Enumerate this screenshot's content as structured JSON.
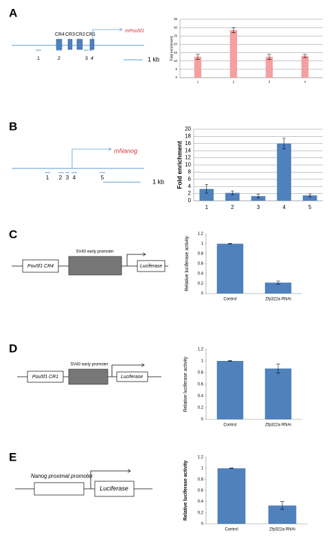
{
  "panels": [
    {
      "label": "A",
      "diagram": {
        "regions": [
          "CR4",
          "CR3",
          "CR2",
          "CR1"
        ],
        "gene": "mPou5f1",
        "primers": [
          "1",
          "2",
          "3",
          "4"
        ],
        "scale": "1 kb"
      }
    },
    {
      "label": "B",
      "diagram": {
        "gene": "mNanog",
        "primers": [
          "1",
          "2",
          "3",
          "4",
          "5"
        ],
        "scale": "1 kb"
      }
    },
    {
      "label": "C",
      "diagram": {
        "element": "Pou5f1 CR4",
        "promoter": "SV40 early promoter",
        "reporter": "Luciferase"
      }
    },
    {
      "label": "D",
      "diagram": {
        "element": "Pou5f1 CR1",
        "promoter": "SV40 early promoter",
        "reporter": "Luciferase"
      }
    },
    {
      "label": "E",
      "diagram": {
        "promoter": "Nanog proximal promoter",
        "reporter": "Luciferase"
      }
    }
  ],
  "chart_data": [
    {
      "type": "bar",
      "ylabel": "Fold enrichment",
      "categories": [
        "1",
        "2",
        "3",
        "4"
      ],
      "values": [
        12.5,
        28.5,
        12.5,
        13
      ],
      "errors": [
        1.5,
        1.5,
        1.5,
        1
      ],
      "color": "#f4a0a0",
      "ylim": [
        0,
        35
      ],
      "yticks": [
        0,
        5,
        10,
        15,
        20,
        25,
        30,
        35
      ],
      "grid": true
    },
    {
      "type": "bar",
      "ylabel": "Fold enrichment",
      "categories": [
        "1",
        "2",
        "3",
        "4",
        "5"
      ],
      "values": [
        3.3,
        2.2,
        1.3,
        16,
        1.5
      ],
      "errors": [
        1.2,
        0.5,
        0.5,
        1.5,
        0.4
      ],
      "color": "#4f81bd",
      "ylim": [
        0,
        20
      ],
      "yticks": [
        0,
        2,
        4,
        6,
        8,
        10,
        12,
        14,
        16,
        18,
        20
      ],
      "grid": true
    },
    {
      "type": "bar",
      "ylabel": "Relative luciferase activity",
      "categories": [
        "Control",
        "Zfp322a RNAi"
      ],
      "values": [
        1,
        0.22
      ],
      "errors": [
        0.005,
        0.03
      ],
      "color": "#4f81bd",
      "ylim": [
        0,
        1.2
      ],
      "yticks": [
        0,
        0.2,
        0.4,
        0.6,
        0.8,
        1,
        1.2
      ],
      "grid": false
    },
    {
      "type": "bar",
      "ylabel": "Relative luciferase activity",
      "categories": [
        "Control",
        "Zfp322a RNAi"
      ],
      "values": [
        1,
        0.87
      ],
      "errors": [
        0.005,
        0.08
      ],
      "color": "#4f81bd",
      "ylim": [
        0,
        1.2
      ],
      "yticks": [
        0,
        0.2,
        0.4,
        0.6,
        0.8,
        1,
        1.2
      ],
      "grid": false
    },
    {
      "type": "bar",
      "ylabel": "Relative luciferase activity",
      "categories": [
        "Control",
        "Zfp322a RNAi"
      ],
      "values": [
        1,
        0.33
      ],
      "errors": [
        0.005,
        0.07
      ],
      "color": "#4f81bd",
      "ylim": [
        0,
        1.2
      ],
      "yticks": [
        0,
        0.2,
        0.4,
        0.6,
        0.8,
        1,
        1.2
      ],
      "grid": false
    }
  ]
}
